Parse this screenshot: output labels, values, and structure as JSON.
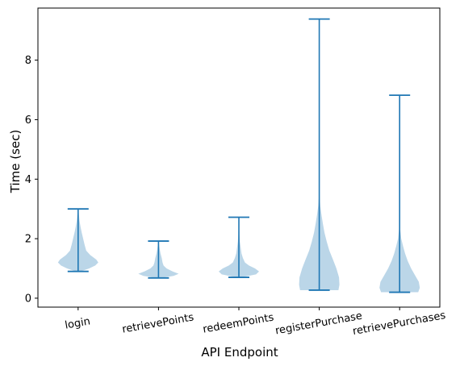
{
  "chart_data": {
    "type": "violin",
    "xlabel": "API Endpoint",
    "ylabel": "Time (sec)",
    "categories": [
      "login",
      "retrievePoints",
      "redeemPoints",
      "registerPurchase",
      "retrievePurchases"
    ],
    "ylim": [
      -0.3,
      9.75
    ],
    "yticks": [
      0,
      2,
      4,
      6,
      8
    ],
    "grid": false,
    "colors": {
      "body": "#1f77b4",
      "line": "#1f77b4"
    },
    "series": [
      {
        "category": "login",
        "min": 0.9,
        "max": 3.0,
        "profile": [
          [
            0.9,
            0.1
          ],
          [
            1.0,
            0.55
          ],
          [
            1.1,
            0.85
          ],
          [
            1.2,
            1.0
          ],
          [
            1.3,
            0.9
          ],
          [
            1.45,
            0.6
          ],
          [
            1.6,
            0.4
          ],
          [
            1.8,
            0.32
          ],
          [
            2.0,
            0.25
          ],
          [
            2.2,
            0.18
          ],
          [
            2.4,
            0.12
          ],
          [
            2.6,
            0.07
          ],
          [
            2.8,
            0.04
          ],
          [
            3.0,
            0.01
          ]
        ]
      },
      {
        "category": "retrievePoints",
        "min": 0.68,
        "max": 1.92,
        "profile": [
          [
            0.68,
            0.1
          ],
          [
            0.75,
            0.75
          ],
          [
            0.82,
            1.0
          ],
          [
            0.9,
            0.7
          ],
          [
            1.0,
            0.4
          ],
          [
            1.1,
            0.25
          ],
          [
            1.2,
            0.2
          ],
          [
            1.35,
            0.16
          ],
          [
            1.5,
            0.1
          ],
          [
            1.65,
            0.06
          ],
          [
            1.8,
            0.03
          ],
          [
            1.92,
            0.01
          ]
        ]
      },
      {
        "category": "redeemPoints",
        "min": 0.7,
        "max": 2.72,
        "profile": [
          [
            0.7,
            0.1
          ],
          [
            0.8,
            0.85
          ],
          [
            0.9,
            1.0
          ],
          [
            1.0,
            0.8
          ],
          [
            1.1,
            0.5
          ],
          [
            1.2,
            0.3
          ],
          [
            1.35,
            0.2
          ],
          [
            1.5,
            0.13
          ],
          [
            1.7,
            0.09
          ],
          [
            1.9,
            0.05
          ],
          [
            2.1,
            0.03
          ],
          [
            2.4,
            0.015
          ],
          [
            2.72,
            0.005
          ]
        ]
      },
      {
        "category": "registerPurchase",
        "min": 0.27,
        "max": 9.38,
        "profile": [
          [
            0.27,
            0.95
          ],
          [
            0.45,
            1.0
          ],
          [
            0.7,
            0.98
          ],
          [
            1.0,
            0.85
          ],
          [
            1.3,
            0.68
          ],
          [
            1.6,
            0.5
          ],
          [
            1.9,
            0.37
          ],
          [
            2.2,
            0.26
          ],
          [
            2.5,
            0.18
          ],
          [
            2.8,
            0.11
          ],
          [
            3.1,
            0.05
          ],
          [
            3.4,
            0.02
          ],
          [
            4.0,
            0.01
          ],
          [
            5.0,
            0.006
          ],
          [
            6.0,
            0.004
          ],
          [
            7.0,
            0.003
          ],
          [
            8.0,
            0.002
          ],
          [
            9.38,
            0.001
          ]
        ]
      },
      {
        "category": "retrievePurchases",
        "min": 0.2,
        "max": 6.82,
        "profile": [
          [
            0.2,
            0.92
          ],
          [
            0.35,
            1.0
          ],
          [
            0.55,
            0.95
          ],
          [
            0.75,
            0.78
          ],
          [
            1.0,
            0.57
          ],
          [
            1.25,
            0.4
          ],
          [
            1.5,
            0.27
          ],
          [
            1.75,
            0.17
          ],
          [
            2.0,
            0.08
          ],
          [
            2.3,
            0.03
          ],
          [
            2.8,
            0.015
          ],
          [
            3.5,
            0.008
          ],
          [
            4.5,
            0.005
          ],
          [
            5.5,
            0.003
          ],
          [
            6.82,
            0.001
          ]
        ]
      }
    ]
  }
}
